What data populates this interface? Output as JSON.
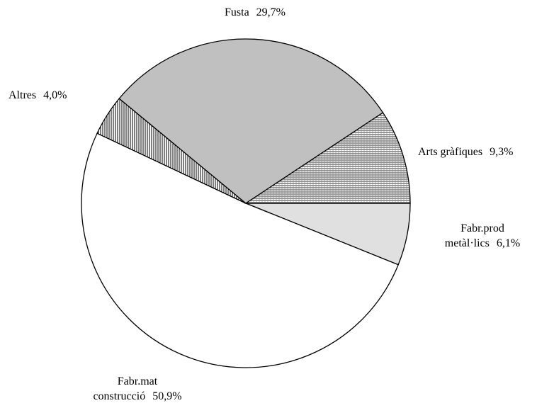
{
  "chart_data": {
    "type": "pie",
    "categories": [
      "Fabr.prod metàl·lics",
      "Fabr.mat construcció",
      "Altres",
      "Fusta",
      "Arts gràfiques"
    ],
    "values": [
      6.1,
      50.9,
      4.0,
      29.7,
      9.3
    ],
    "value_labels": [
      "6,1%",
      "50,9%",
      "4,0%",
      "29,7%",
      "9,3%"
    ],
    "colors": [
      "#e0e0e0",
      "#ffffff",
      "url(#vlines)",
      "#c0c0c0",
      "url(#hgrid)"
    ]
  }
}
